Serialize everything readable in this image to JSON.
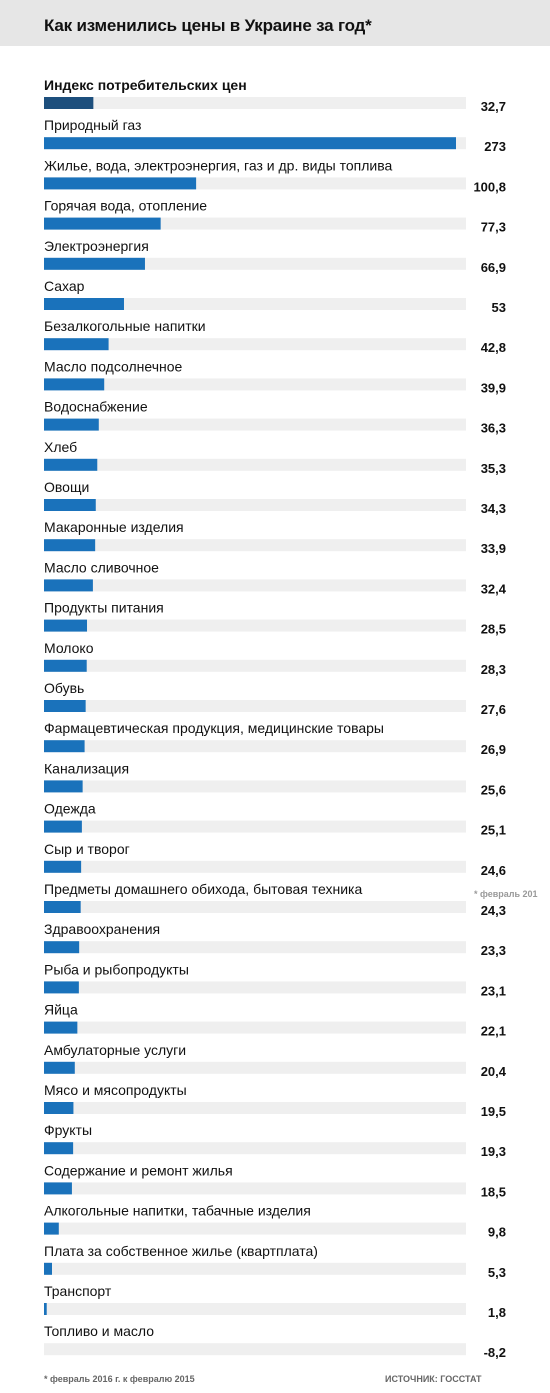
{
  "chart_data": {
    "type": "bar",
    "orientation": "horizontal",
    "title": "Как изменились цены в Украине за год*",
    "categories": [
      "Индекс потребительских цен",
      "Природный газ",
      "Жилье, вода, электроэнергия, газ и др. виды топлива",
      "Горячая вода, отопление",
      "Электроэнергия",
      "Сахар",
      "Безалкогольные напитки",
      "Масло подсолнечное",
      "Водоснабжение",
      "Хлеб",
      "Овощи",
      "Макаронные изделия",
      "Масло сливочное",
      "Продукты питания",
      "Молоко",
      "Обувь",
      "Фармацевтическая продукция, медицинские товары",
      "Канализация",
      "Одежда",
      "Сыр и творог",
      "Предметы домашнего обихода, бытовая техника",
      "Здравоохранения",
      "Рыба и рыбопродукты",
      "Яйца",
      "Амбулаторные услуги",
      "Мясо и мясопродукты",
      "Фрукты",
      "Содержание и ремонт жилья",
      "Алкогольные напитки, табачные изделия",
      "Плата за собственное жилье (квартплата)",
      "Транспорт",
      "Топливо и масло"
    ],
    "values": [
      32.7,
      273,
      100.8,
      77.3,
      66.9,
      53,
      42.8,
      39.9,
      36.3,
      35.3,
      34.3,
      33.9,
      32.4,
      28.5,
      28.3,
      27.6,
      26.9,
      25.6,
      25.1,
      24.6,
      24.3,
      23.3,
      23.1,
      22.1,
      20.4,
      19.5,
      19.3,
      18.5,
      9.8,
      5.3,
      1.8,
      -8.2
    ],
    "value_labels": [
      "32,7",
      "273",
      "100,8",
      "77,3",
      "66,9",
      "53",
      "42,8",
      "39,9",
      "36,3",
      "35,3",
      "34,3",
      "33,9",
      "32,4",
      "28,5",
      "28,3",
      "27,6",
      "26,9",
      "25,6",
      "25,1",
      "24,6",
      "24,3",
      "23,3",
      "23,1",
      "22,1",
      "20,4",
      "19,5",
      "19,3",
      "18,5",
      "9,8",
      "5,3",
      "1,8",
      "-8,2"
    ],
    "highlight_index": 0,
    "bold_category_index": 0,
    "xlim": [
      0,
      273
    ],
    "colors": {
      "bar": "#1a72bb",
      "highlight_bar": "#1d4f7d",
      "track": "#efefef",
      "title_bg": "#e6e6e6"
    }
  },
  "footnote": "* февраль 2016 г. к февралю 2015",
  "source": "ИСТОЧНИК: ГОССТАТ",
  "side_note": "* февраль 201"
}
